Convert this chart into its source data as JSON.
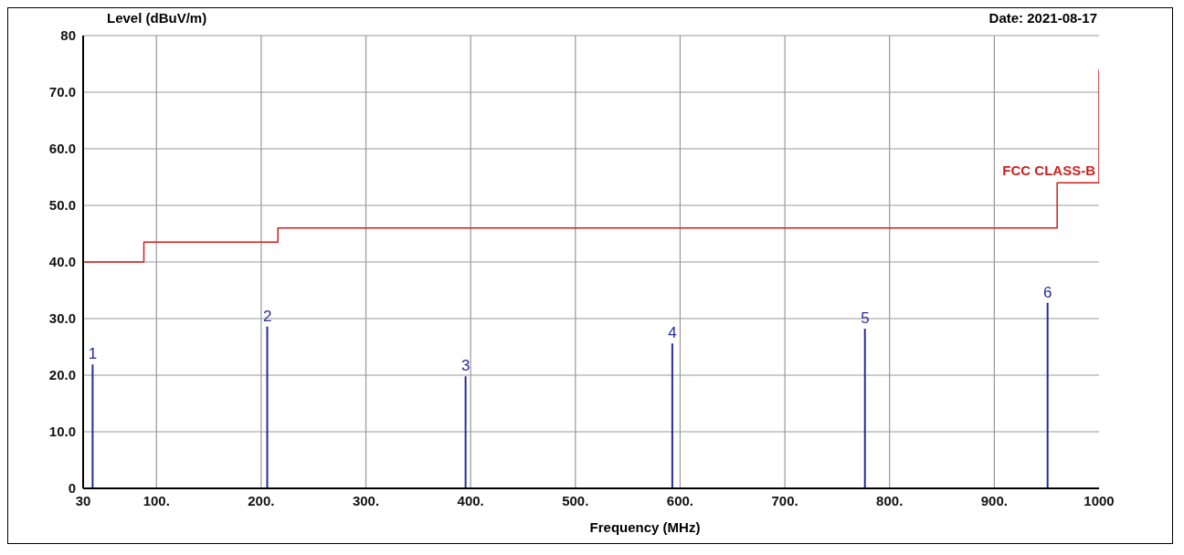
{
  "chart_data": {
    "type": "bar",
    "ylabel": "Level (dBuV/m)",
    "xlabel": "Frequency (MHz)",
    "annotations": [
      "Date: 2021-08-17",
      {
        "text": "1",
        "x": 39.2,
        "y": 21.9
      },
      {
        "text": "2",
        "x": 205.9,
        "y": 28.6
      },
      {
        "text": "3",
        "x": 395.3,
        "y": 19.8
      },
      {
        "text": "4",
        "x": 592.7,
        "y": 25.6
      },
      {
        "text": "5",
        "x": 776.6,
        "y": 28.2
      },
      {
        "text": "6",
        "x": 951,
        "y": 32.8
      }
    ],
    "series": [
      {
        "type": "step",
        "name": "FCC CLASS-B",
        "color": "#cc1f1f",
        "x": [
          30,
          88,
          216,
          960,
          1000,
          1000
        ],
        "values": [
          40,
          43.5,
          46,
          54,
          54,
          74
        ]
      },
      {
        "color": "#2b2b9a",
        "x": [
          39.2,
          205.9,
          395.3,
          592.7,
          776.6,
          951
        ],
        "values": [
          21.9,
          28.6,
          19.8,
          25.6,
          28.2,
          32.8
        ]
      }
    ],
    "xlim": [
      30,
      1000
    ],
    "xticks": [
      30,
      {
        "value": 100,
        "label": "100."
      },
      {
        "value": 200,
        "label": "200."
      },
      {
        "value": 300,
        "label": "300."
      },
      {
        "value": 400,
        "label": "400."
      },
      {
        "value": 500,
        "label": "500."
      },
      {
        "value": 600,
        "label": "600."
      },
      {
        "value": 700,
        "label": "700."
      },
      {
        "value": 800,
        "label": "800."
      },
      {
        "value": 900,
        "label": "900."
      },
      1000
    ],
    "ylim": [
      0,
      80
    ],
    "yticks": [
      {
        "value": 0,
        "label": "0"
      },
      {
        "value": 10,
        "label": "10.0"
      },
      {
        "value": 20,
        "label": "20.0"
      },
      {
        "value": 30,
        "label": "30.0"
      },
      {
        "value": 40,
        "label": "40.0"
      },
      {
        "value": 50,
        "label": "50.0"
      },
      {
        "value": 60,
        "label": "60.0"
      },
      {
        "value": 70,
        "label": "70.0"
      },
      {
        "value": 80,
        "label": "80"
      }
    ],
    "grid": true,
    "legend": false
  }
}
